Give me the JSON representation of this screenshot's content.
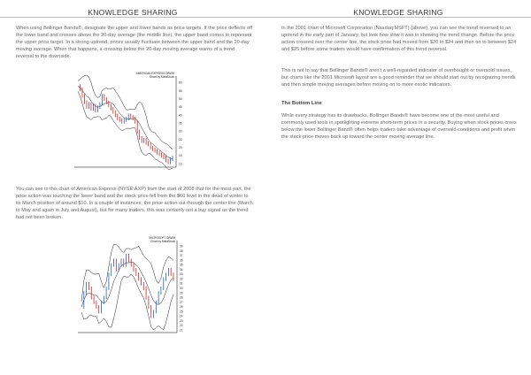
{
  "left_page": {
    "header": "KNOWLEDGE SHARING",
    "paragraph_1": "When using Bollinger Bands®, designate the upper and lower bands as price targets. If the price deflects off the lower band and crosses above the 20-day average (the middle line), the upper band comes to represent the upper price target. In a strong uptrend, prices usually fluctuate between the upper band and the 20-day moving average. When that happens, a crossing below the 20-day moving average warns of a trend reversal to the downside.",
    "paragraph_2": "You can see in this chart of American Express (NYSE:AXP) from the start of 2008 that for the most part, the price action was touching the lower band and the stock price fell from the $60 level in the dead of winter to its March position of around $10. In a couple of instances, the price action cut through the center line (March to May and again in July and August), but for many traders, this was certainly not a buy signal as the trend had not been broken."
  },
  "right_page": {
    "header": "KNOWLEDGE SHARING",
    "paragraph_1": "In the 2001 chart of Microsoft Corporation (Nasdaq:MSFT) (above), you can see the trend reversed to an uptrend in the early part of January, but look how slow it was in showing the trend change. Before the price action crossed over the center line, the stock price had moved from $20 to $24 and then on to between $24 and $25 before some traders would have confirmation of this trend reversal.",
    "paragraph_2": "This is not to say that Bollinger Bands® aren't a well-regarded indicator of overbought or oversold issues, but charts like the 2001 Microsoft layout are a good reminder that we should start out by recognizing trends and then simple moving averages before moving on to more exotic indicators.",
    "subheading": "The Bottom Line",
    "paragraph_3": "While every strategy has its drawbacks, Bollinger Bands® have become one of the most useful and commonly used tools in spotlighting extreme short-term prices in a security. Buying when stock prices cross below the lower Bollinger Band® often helps traders take advantage of oversold conditions and profit when the stock price moves back up toward the center moving average line."
  },
  "chart_axp": {
    "title": "AMERICAN EXPRESS D/W/M",
    "credit": "Chart by MetaStock",
    "y_ticks": [
      "60",
      "55",
      "50",
      "45",
      "40",
      "35",
      "30",
      "25",
      "20",
      "15",
      "10"
    ],
    "ylim": [
      8,
      62
    ],
    "colors": {
      "up": "#1f5fbf",
      "down": "#d62020",
      "band": "#222222"
    }
  },
  "chart_msft": {
    "title": "MICROSOFT D/W/M",
    "credit": "Chart by MetaStock",
    "y_ticks": [
      "39",
      "38",
      "37",
      "36",
      "35",
      "34",
      "33",
      "32",
      "31",
      "30",
      "29",
      "28",
      "27",
      "26",
      "25",
      "24",
      "23",
      "22",
      "21"
    ],
    "ylim": [
      20.5,
      39.5
    ],
    "colors": {
      "up": "#1f5fbf",
      "down": "#d62020",
      "band": "#222222"
    }
  }
}
